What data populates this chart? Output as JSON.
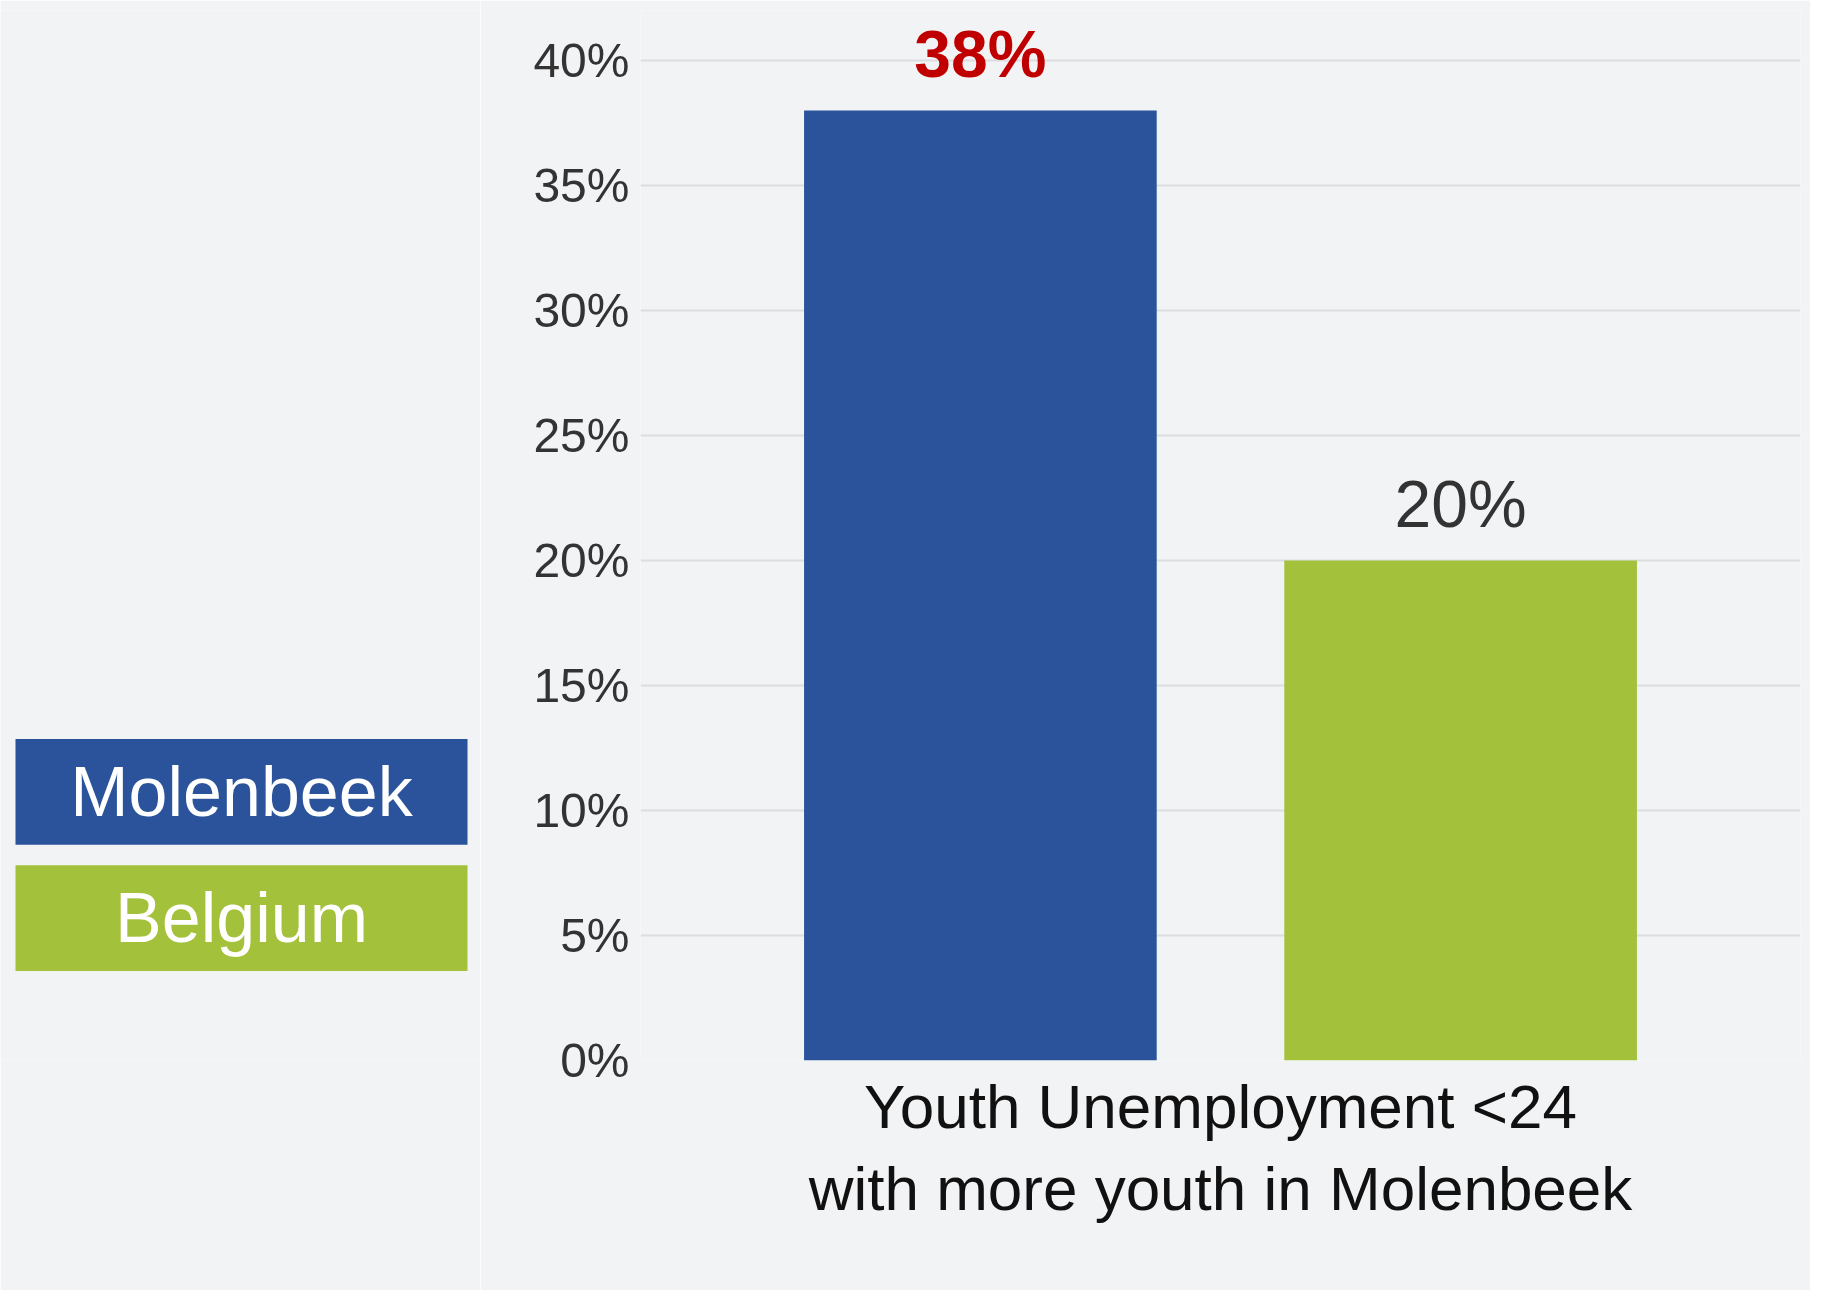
{
  "chart_data": {
    "type": "bar",
    "xlabel": "Youth Unemployment <24\nwith more youth in Molenbeek",
    "categories": [
      null
    ],
    "series": [
      {
        "name": "Molenbeek",
        "color": "#2a539b",
        "values": [
          38
        ],
        "value_labels": [
          "38%"
        ]
      },
      {
        "name": "Belgium",
        "color": "#a3c13a",
        "values": [
          20
        ],
        "value_labels": [
          "20%"
        ]
      }
    ],
    "ylim": [
      0,
      42
    ],
    "yticks": [
      {
        "value": 0,
        "label": "0%"
      },
      {
        "value": 5,
        "label": "5%"
      },
      {
        "value": 10,
        "label": "10%"
      },
      {
        "value": 15,
        "label": "15%"
      },
      {
        "value": 20,
        "label": "20%"
      },
      {
        "value": 25,
        "label": "25%"
      },
      {
        "value": 30,
        "label": "30%"
      },
      {
        "value": 35,
        "label": "35%"
      },
      {
        "value": 40,
        "label": "40%"
      }
    ],
    "grid": "y",
    "legend": "left"
  }
}
